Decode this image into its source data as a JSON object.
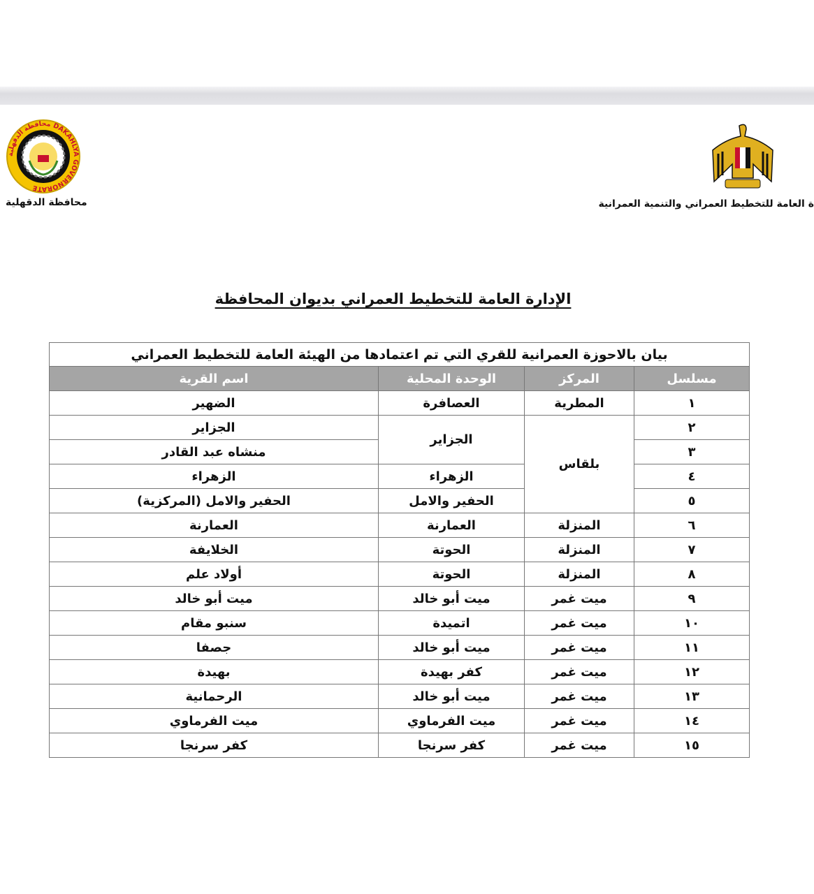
{
  "header": {
    "left_caption": "محافظة الدقهلية",
    "left_logo_text": "محافظة الدقهلية DAKAHLYA GOVERNORATE",
    "right_caption": "ة العامة للتخطيط العمراني والتنمية العمرانية",
    "colors": {
      "logo_yellow": "#f5c400",
      "logo_red": "#c8102e",
      "header_gray": "#a5a5a5"
    }
  },
  "title": "الإدارة العامة للتخطيط العمراني بديوان المحافظة",
  "table": {
    "caption": "بيان بالاحوزة العمرانية للقري التي تم اعتمادها من الهيئة العامة للتخطيط العمراني",
    "columns": [
      "مسلسل",
      "المركز",
      "الوحدة المحلية",
      "اسم  القرية"
    ],
    "rows": [
      {
        "serial": "١",
        "markaz": "المطرية",
        "unit": "العصافرة",
        "village": "الضهير"
      },
      {
        "serial": "٢",
        "markaz": "بلقاس",
        "unit": "الجزاير",
        "village": "الجزاير"
      },
      {
        "serial": "٣",
        "markaz": "",
        "unit": "",
        "village": "منشاه عبد القادر"
      },
      {
        "serial": "٤",
        "markaz": "",
        "unit": "الزهراء",
        "village": "الزهراء"
      },
      {
        "serial": "٥",
        "markaz": "",
        "unit": "الحفير والامل",
        "village": "الحفير والامل (المركزية)"
      },
      {
        "serial": "٦",
        "markaz": "المنزلة",
        "unit": "العمارنة",
        "village": "العمارنة"
      },
      {
        "serial": "٧",
        "markaz": "المنزلة",
        "unit": "الحوتة",
        "village": "الخلايفة"
      },
      {
        "serial": "٨",
        "markaz": "المنزلة",
        "unit": "الحوتة",
        "village": "أولاد علم"
      },
      {
        "serial": "٩",
        "markaz": "ميت غمر",
        "unit": "ميت أبو خالد",
        "village": "ميت أبو خالد"
      },
      {
        "serial": "١٠",
        "markaz": "ميت غمر",
        "unit": "اتميدة",
        "village": "سنبو مقام"
      },
      {
        "serial": "١١",
        "markaz": "ميت غمر",
        "unit": "ميت أبو خالد",
        "village": "جصفا"
      },
      {
        "serial": "١٢",
        "markaz": "ميت غمر",
        "unit": "كفر بهيدة",
        "village": "بهيدة"
      },
      {
        "serial": "١٣",
        "markaz": "ميت غمر",
        "unit": "ميت أبو خالد",
        "village": "الرحمانية"
      },
      {
        "serial": "١٤",
        "markaz": "ميت غمر",
        "unit": "ميت الفرماوي",
        "village": "ميت الفرماوي"
      },
      {
        "serial": "١٥",
        "markaz": "ميت غمر",
        "unit": "كفر سرنجا",
        "village": "كفر سرنجا"
      }
    ]
  }
}
